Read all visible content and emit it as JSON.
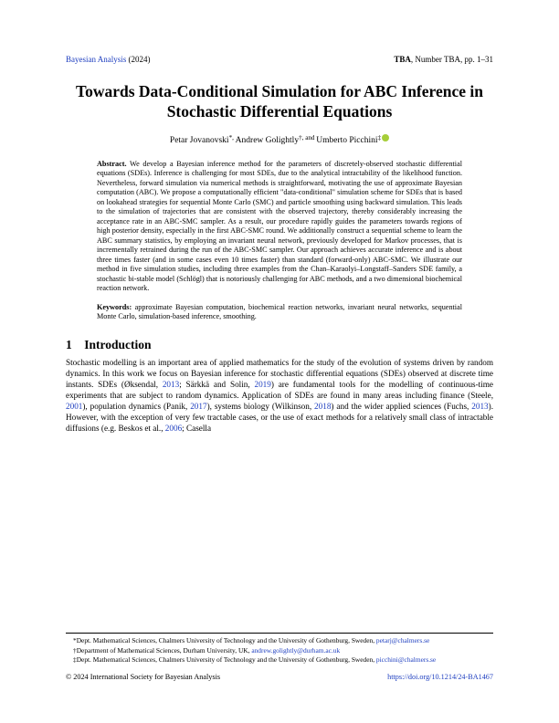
{
  "header": {
    "journal": "Bayesian Analysis",
    "year": "(2024)",
    "center": "TBA",
    "right": ", Number TBA, pp. 1–31"
  },
  "title": "Towards Data-Conditional Simulation for ABC Inference in Stochastic Differential Equations",
  "authors": {
    "a1": "Petar Jovanovski",
    "sep1": "*, ",
    "a2": "Andrew Golightly",
    "sep2": "†, and ",
    "a3": "Umberto Picchini",
    "mark3": "‡"
  },
  "abstract": {
    "label": "Abstract.",
    "text": "We develop a Bayesian inference method for the parameters of discretely-observed stochastic differential equations (SDEs). Inference is challenging for most SDEs, due to the analytical intractability of the likelihood function. Nevertheless, forward simulation via numerical methods is straightforward, motivating the use of approximate Bayesian computation (ABC). We propose a computationally efficient \"data-conditional\" simulation scheme for SDEs that is based on lookahead strategies for sequential Monte Carlo (SMC) and particle smoothing using backward simulation. This leads to the simulation of trajectories that are consistent with the observed trajectory, thereby considerably increasing the acceptance rate in an ABC-SMC sampler. As a result, our procedure rapidly guides the parameters towards regions of high posterior density, especially in the first ABC-SMC round. We additionally construct a sequential scheme to learn the ABC summary statistics, by employing an invariant neural network, previously developed for Markov processes, that is incrementally retrained during the run of the ABC-SMC sampler. Our approach achieves accurate inference and is about three times faster (and in some cases even 10 times faster) than standard (forward-only) ABC-SMC. We illustrate our method in five simulation studies, including three examples from the Chan–Karaolyi–Longstaff–Sanders SDE family, a stochastic bi-stable model (Schlögl) that is notoriously challenging for ABC methods, and a two dimensional biochemical reaction network."
  },
  "keywords": {
    "label": "Keywords:",
    "text": "approximate Bayesian computation, biochemical reaction networks, invariant neural networks, sequential Monte Carlo, simulation-based inference, smoothing."
  },
  "section1": {
    "heading": "1 Introduction",
    "p1a": "Stochastic modelling is an important area of applied mathematics for the study of the evolution of systems driven by random dynamics. In this work we focus on Bayesian inference for stochastic differential equations (SDEs) observed at discrete time instants. SDEs (Øksendal, ",
    "r1": "2013",
    "p1b": "; Särkkä and Solin, ",
    "r2": "2019",
    "p1c": ") are fundamental tools for the modelling of continuous-time experiments that are subject to random dynamics. Application of SDEs are found in many areas including finance (Steele, ",
    "r3": "2001",
    "p1d": "), population dynamics (Panik, ",
    "r4": "2017",
    "p1e": "), systems biology (Wilkinson, ",
    "r5": "2018",
    "p1f": ") and the wider applied sciences (Fuchs, ",
    "r6": "2013",
    "p1g": "). However, with the exception of very few tractable cases, or the use of exact methods for a relatively small class of intractable diffusions (e.g. Beskos et al., ",
    "r7": "2006",
    "p1h": "; Casella"
  },
  "footnotes": {
    "f1a": "*Dept. Mathematical Sciences, Chalmers University of Technology and the University of Gothenburg, Sweden, ",
    "f1link": "petarj@chalmers.se",
    "f2a": "†Department of Mathematical Sciences, Durham University, UK, ",
    "f2link": "andrew.golightly@durham.ac.uk",
    "f3a": "‡Dept. Mathematical Sciences, Chalmers University of Technology and the University of Gothenburg, Sweden, ",
    "f3link": "picchini@chalmers.se"
  },
  "copyright": {
    "left": "© 2024 International Society for Bayesian Analysis",
    "doi": "https://doi.org/10.1214/24-BA1467"
  },
  "colors": {
    "link": "#2040c0",
    "orcid": "#a6ce39",
    "text": "#000000",
    "bg": "#ffffff"
  }
}
